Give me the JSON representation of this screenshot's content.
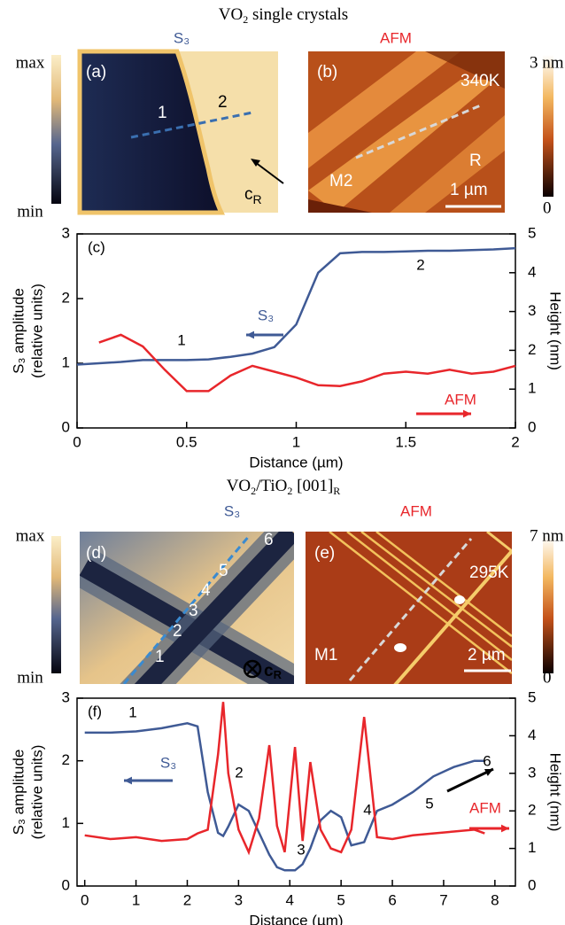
{
  "sections": [
    {
      "parts": [
        "VO",
        "2",
        " single crystals"
      ]
    },
    {
      "parts": [
        "VO",
        "2",
        "/TiO",
        "2",
        " [001]",
        "R"
      ]
    }
  ],
  "panels": [
    {
      "label": "(a)",
      "caption": "S₃",
      "colorbar": [
        "max",
        "min"
      ],
      "marks": [
        "1",
        "2"
      ],
      "axis_label": [
        "c",
        "R"
      ]
    },
    {
      "label": "(b)",
      "caption": "AFM",
      "colorbar": [
        "3 nm",
        "0"
      ],
      "temperature": "340K",
      "marks": [
        "M2",
        "R"
      ],
      "scale": "1 µm"
    },
    {
      "label": "(d)",
      "caption": "S₃",
      "colorbar": [
        "max",
        "min"
      ],
      "marks": [
        "1",
        "2",
        "3",
        "4",
        "5",
        "6"
      ],
      "axis_label": [
        "c",
        "R"
      ]
    },
    {
      "label": "(e)",
      "caption": "AFM",
      "colorbar": [
        "7 nm",
        "0"
      ],
      "temperature": "295K",
      "marks": [
        "M1"
      ],
      "scale": "2 µm"
    }
  ],
  "chart_data": [
    {
      "type": "line",
      "label": "(c)",
      "xlabel": "Distance (µm)",
      "ylabel": [
        "S₃ amplitude",
        "(relative units)"
      ],
      "y2label": "Height (nm)",
      "x": [
        0,
        0.1,
        0.2,
        0.3,
        0.4,
        0.5,
        0.6,
        0.7,
        0.8,
        0.9,
        1.0,
        1.1,
        1.2,
        1.3,
        1.4,
        1.5,
        1.6,
        1.7,
        1.8,
        1.9,
        2.0
      ],
      "xlim": [
        0,
        2
      ],
      "xticks": [
        0,
        0.5,
        1,
        1.5,
        2
      ],
      "ylim": [
        0,
        3
      ],
      "yticks": [
        0,
        1,
        2,
        3
      ],
      "y2lim": [
        0,
        5
      ],
      "y2ticks": [
        0,
        1,
        2,
        3,
        4,
        5
      ],
      "series": [
        {
          "name": "S₃",
          "color": "#3f5a95",
          "values": [
            0.98,
            1.0,
            1.02,
            1.05,
            1.05,
            1.05,
            1.06,
            1.1,
            1.15,
            1.25,
            1.6,
            2.4,
            2.7,
            2.72,
            2.72,
            2.73,
            2.74,
            2.74,
            2.75,
            2.76,
            2.78
          ]
        },
        {
          "name": "AFM",
          "color": "#e8262b",
          "axis": "y2",
          "values": [
            null,
            2.2,
            2.4,
            2.1,
            1.5,
            0.95,
            0.95,
            1.35,
            1.6,
            1.45,
            1.3,
            1.1,
            1.08,
            1.2,
            1.4,
            1.45,
            1.4,
            1.5,
            1.4,
            1.45,
            1.6
          ]
        }
      ],
      "annotations": [
        "1",
        "2"
      ]
    },
    {
      "type": "line",
      "label": "(f)",
      "xlabel": "Distance (µm)",
      "ylabel": [
        "S₃ amplitude",
        "(relative units)"
      ],
      "y2label": "Height (nm)",
      "x": [
        0,
        0.5,
        1,
        1.5,
        2,
        2.2,
        2.4,
        2.6,
        2.7,
        2.8,
        3.0,
        3.2,
        3.4,
        3.6,
        3.75,
        3.9,
        4.1,
        4.25,
        4.4,
        4.6,
        4.8,
        5.0,
        5.2,
        5.45,
        5.7,
        6.0,
        6.4,
        6.8,
        7.2,
        7.6,
        7.8
      ],
      "xlim": [
        -0.15,
        8.4
      ],
      "xticks": [
        0,
        1,
        2,
        3,
        4,
        5,
        6,
        7,
        8
      ],
      "ylim": [
        0,
        3
      ],
      "yticks": [
        0,
        1,
        2,
        3
      ],
      "y2lim": [
        0,
        5
      ],
      "y2ticks": [
        0,
        1,
        2,
        3,
        4,
        5
      ],
      "series": [
        {
          "name": "S₃",
          "color": "#3f5a95",
          "values": [
            2.45,
            2.45,
            2.47,
            2.52,
            2.6,
            2.55,
            1.5,
            0.85,
            0.8,
            0.95,
            1.3,
            1.2,
            0.85,
            0.5,
            0.3,
            0.25,
            0.25,
            0.35,
            0.6,
            1.05,
            1.2,
            1.1,
            0.65,
            0.7,
            1.2,
            1.3,
            1.5,
            1.75,
            1.9,
            2.0,
            2.0
          ]
        },
        {
          "name": "AFM",
          "color": "#e8262b",
          "axis": "y2",
          "values": [
            1.35,
            1.25,
            1.3,
            1.2,
            1.25,
            1.4,
            1.5,
            3.5,
            4.9,
            3.0,
            1.5,
            0.9,
            1.8,
            3.75,
            1.6,
            0.9,
            3.7,
            1.2,
            3.3,
            1.5,
            1.0,
            0.9,
            1.5,
            4.5,
            1.3,
            1.25,
            1.35,
            1.4,
            1.45,
            1.5,
            1.4
          ]
        }
      ],
      "annotations": [
        "1",
        "2",
        "3",
        "4",
        "5",
        "6"
      ]
    }
  ]
}
